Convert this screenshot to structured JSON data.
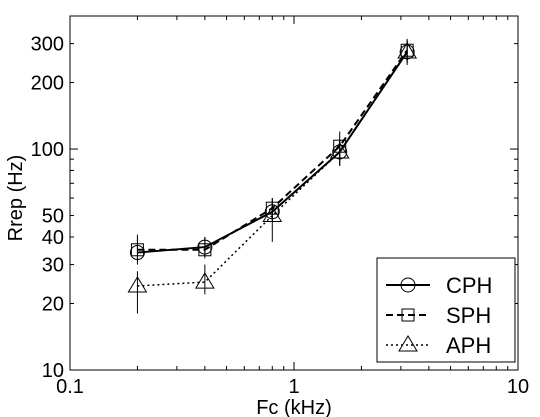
{
  "chart_data": {
    "type": "line",
    "xlabel": "Fc (kHz)",
    "ylabel": "Rrep (Hz)",
    "xscale": "log",
    "yscale": "log",
    "xlim": [
      0.1,
      10
    ],
    "ylim": [
      10,
      400
    ],
    "x_tick_labels": [
      {
        "value": 0.1,
        "label": "0.1"
      },
      {
        "value": 1,
        "label": "1"
      },
      {
        "value": 10,
        "label": "10"
      }
    ],
    "y_tick_labels": [
      {
        "value": 10,
        "label": "10"
      },
      {
        "value": 20,
        "label": "20"
      },
      {
        "value": 30,
        "label": "30"
      },
      {
        "value": 40,
        "label": "40"
      },
      {
        "value": 50,
        "label": "50"
      },
      {
        "value": 100,
        "label": "100"
      },
      {
        "value": 200,
        "label": "200"
      },
      {
        "value": 300,
        "label": "300"
      }
    ],
    "grid": false,
    "legend_position": "bottom-right",
    "series": [
      {
        "name": "CPH",
        "marker": "circle",
        "line_style": "solid",
        "x": [
          0.2,
          0.4,
          0.8,
          1.6,
          3.2
        ],
        "y": [
          34,
          36,
          52,
          97,
          275
        ],
        "err_low": [
          30,
          33,
          47,
          84,
          245
        ],
        "err_high": [
          39,
          40,
          58,
          110,
          310
        ]
      },
      {
        "name": "SPH",
        "marker": "square",
        "line_style": "dashed",
        "x": [
          0.2,
          0.4,
          0.8,
          1.6,
          3.2
        ],
        "y": [
          35,
          35,
          54,
          103,
          280
        ],
        "err_low": [
          31,
          32,
          49,
          90,
          250
        ],
        "err_high": [
          41,
          40,
          60,
          120,
          315
        ]
      },
      {
        "name": "APH",
        "marker": "triangle",
        "line_style": "dotted",
        "x": [
          0.2,
          0.4,
          0.8,
          1.6,
          3.2
        ],
        "y": [
          24,
          25,
          50,
          97,
          275
        ],
        "err_low": [
          18,
          22,
          38,
          84,
          240
        ],
        "err_high": [
          28,
          30,
          60,
          110,
          310
        ]
      }
    ]
  }
}
